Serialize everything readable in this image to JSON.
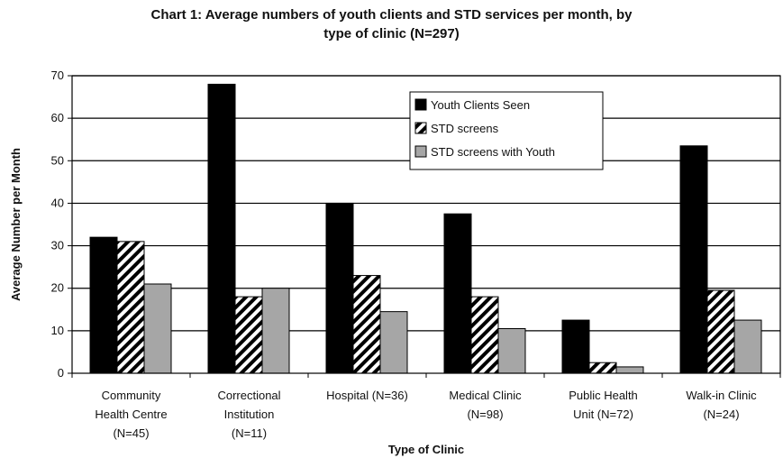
{
  "chart_data": {
    "type": "bar",
    "title_line1": "Chart 1: Average numbers of youth clients and STD services per month, by",
    "title_line2": "type of clinic (N=297)",
    "xlabel": "Type of Clinic",
    "ylabel": "Average Number per Month",
    "ylim": [
      0,
      70
    ],
    "yticks": [
      0,
      10,
      20,
      30,
      40,
      50,
      60,
      70
    ],
    "grid": true,
    "legend_position": "top-right",
    "categories": [
      [
        "Community",
        "Health Centre",
        "(N=45)"
      ],
      [
        "Correctional",
        "Institution",
        "(N=11)"
      ],
      [
        "Hospital (N=36)"
      ],
      [
        "Medical Clinic",
        "(N=98)"
      ],
      [
        "Public Health",
        "Unit (N=72)"
      ],
      [
        "Walk-in Clinic",
        "(N=24)"
      ]
    ],
    "series": [
      {
        "name": "Youth Clients Seen",
        "values": [
          32,
          68,
          40,
          37.5,
          12.5,
          53.5
        ]
      },
      {
        "name": "STD screens",
        "values": [
          31,
          18,
          23,
          18,
          2.5,
          19.5
        ]
      },
      {
        "name": "STD screens with Youth",
        "values": [
          21,
          20,
          14.5,
          10.5,
          1.5,
          12.5
        ]
      }
    ]
  }
}
